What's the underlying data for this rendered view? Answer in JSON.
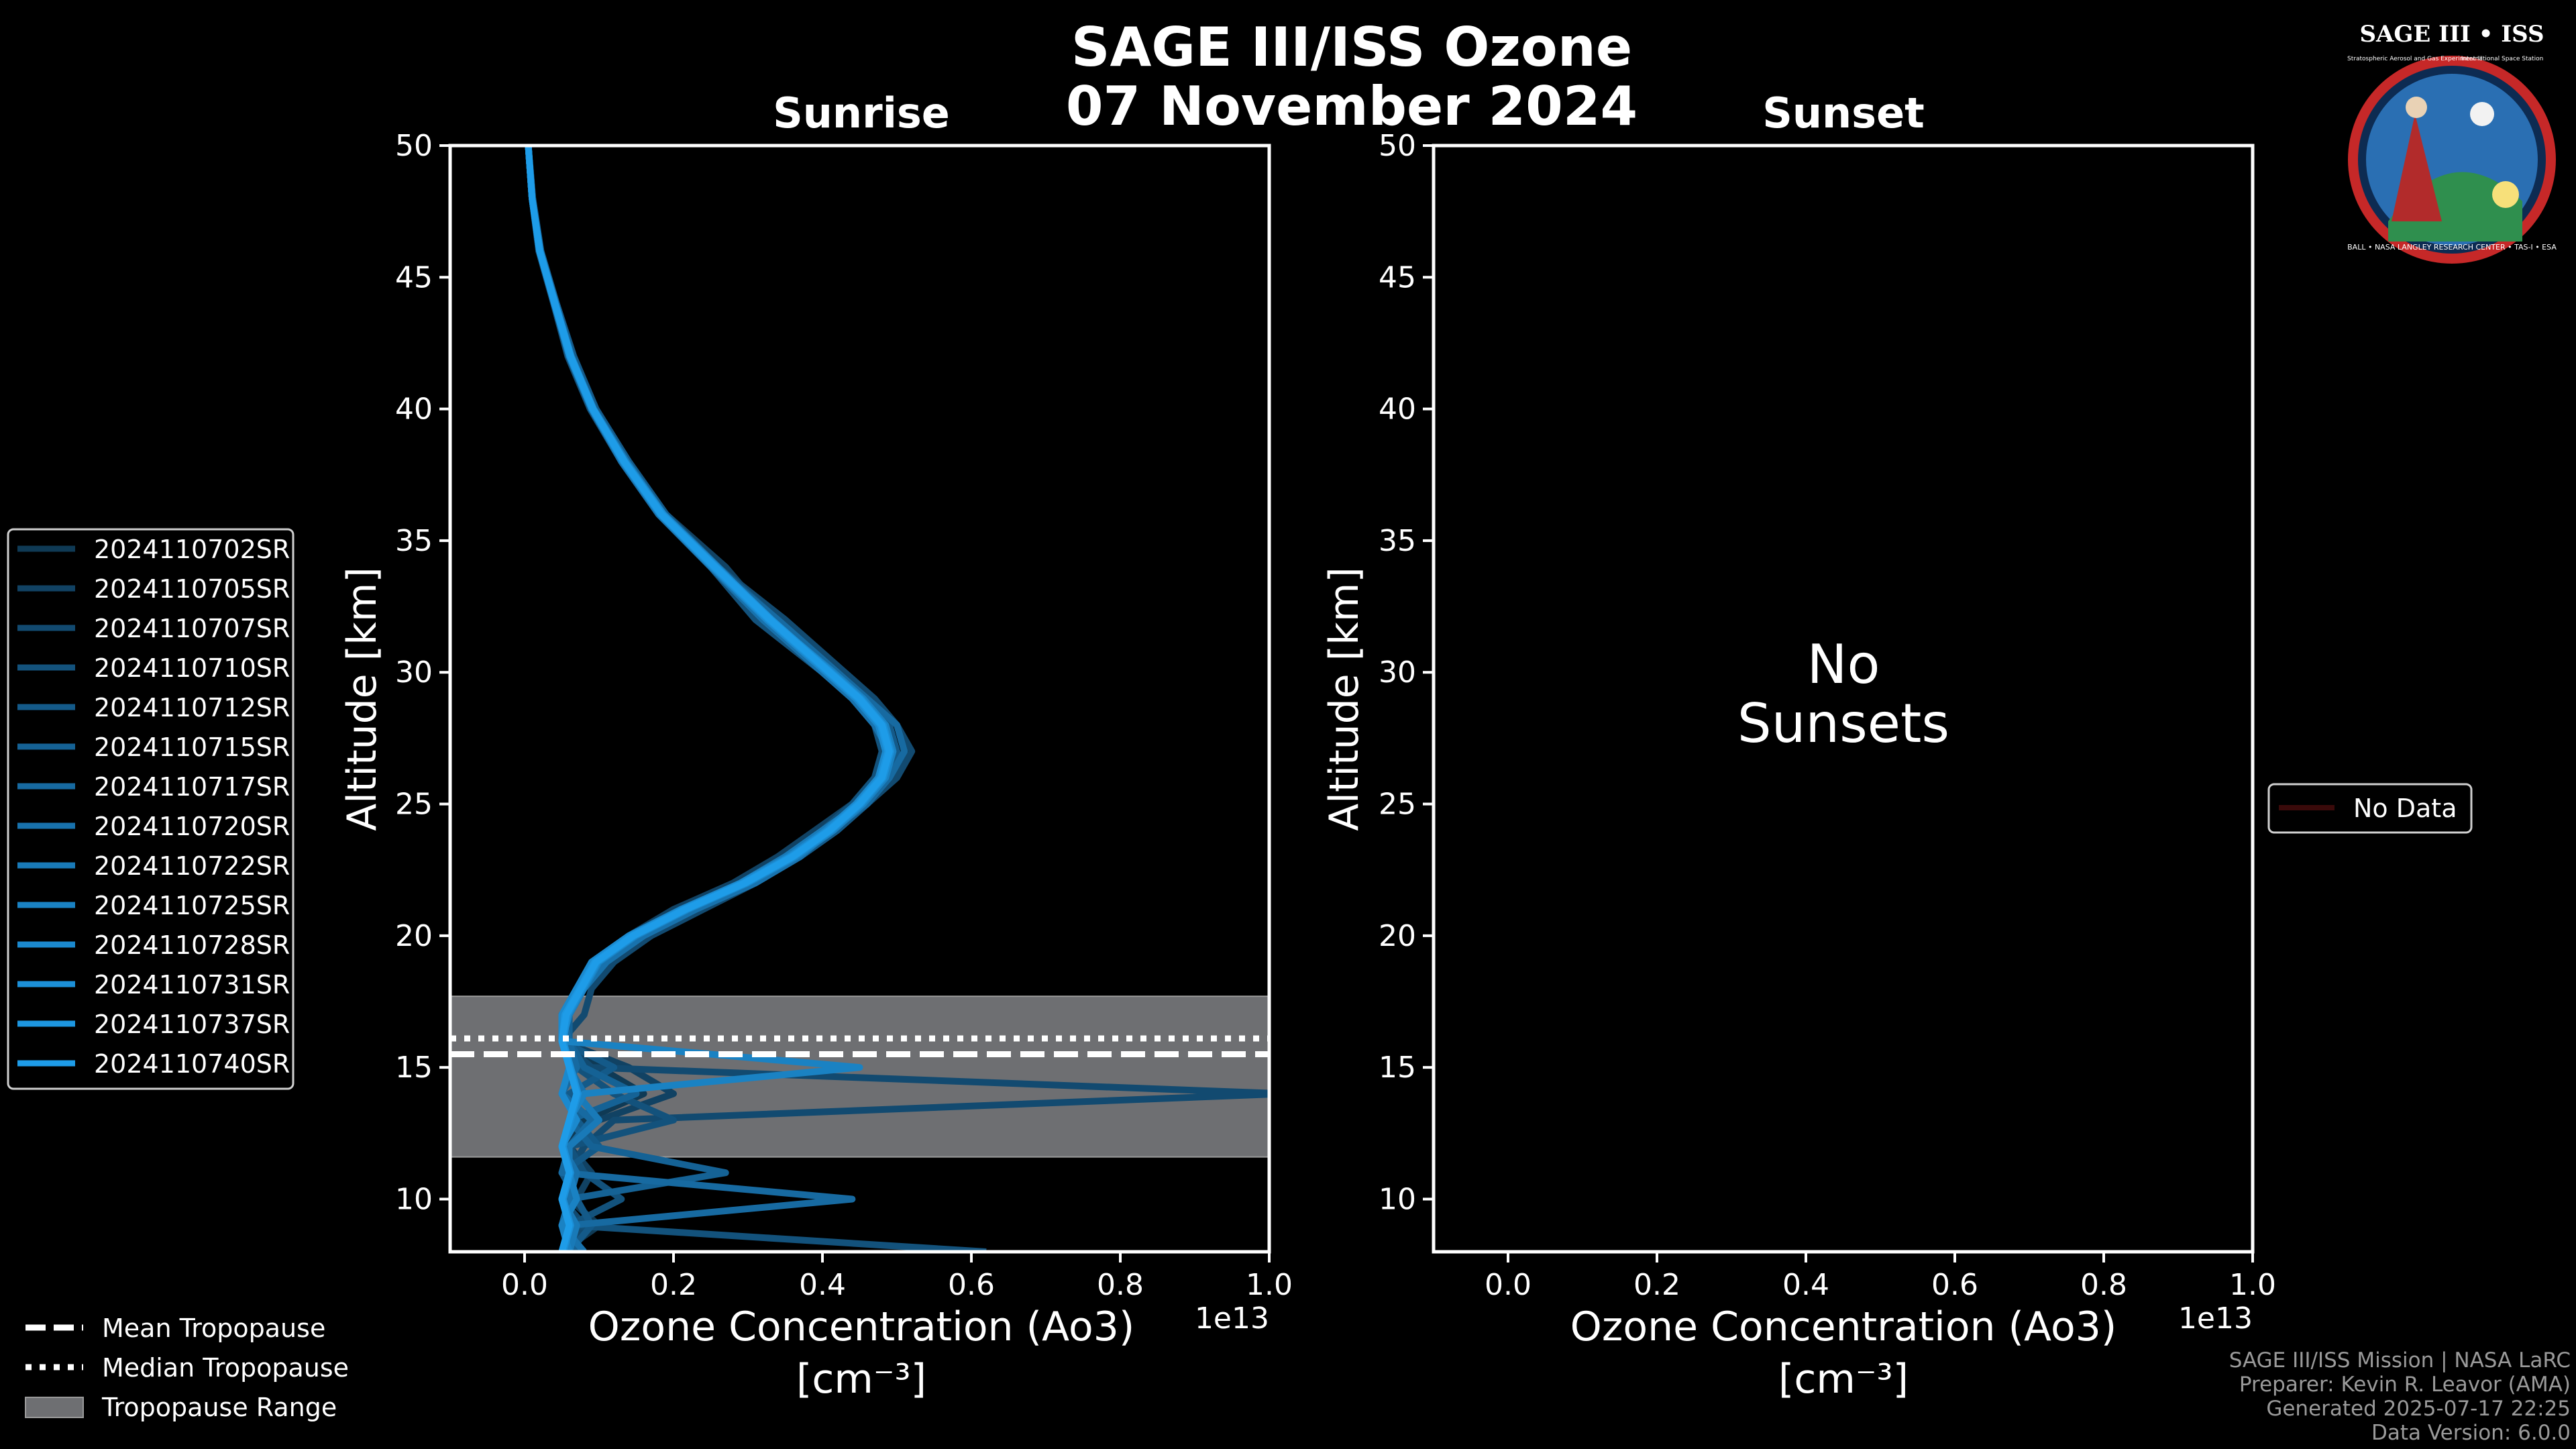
{
  "title_line1": "SAGE III/ISS Ozone",
  "title_line2": "07 November 2024",
  "logo": {
    "text_top": "SAGE III • ISS",
    "text_sub": "Stratospheric Aerosol and Gas Experiment III",
    "text_sub2": "International Space Station",
    "text_ring": "BALL • NASA LANGLEY RESEARCH CENTER • TAS-I • ESA"
  },
  "chart_data": [
    {
      "type": "line",
      "title": "Sunrise",
      "xlabel": "Ozone Concentration (Ao3)",
      "xlabel_units": "[cm⁻³]",
      "ylabel": "Altitude [km]",
      "x_scale_label": "1e13",
      "xlim": [
        -0.1,
        1.0
      ],
      "ylim": [
        8,
        50
      ],
      "xticks": [
        "0.0",
        "0.2",
        "0.4",
        "0.6",
        "0.8",
        "1.0"
      ],
      "yticks": [
        "10",
        "15",
        "20",
        "25",
        "30",
        "35",
        "40",
        "45",
        "50"
      ],
      "profile_altitudes_km": [
        50,
        48,
        46,
        44,
        42,
        40,
        38,
        36,
        34,
        32,
        30,
        29,
        28,
        27,
        26,
        25,
        24,
        23,
        22,
        21,
        20,
        19,
        18,
        17,
        16,
        15,
        14,
        13,
        12,
        11,
        10,
        9,
        8
      ],
      "tropopause": {
        "mean_km": 15.5,
        "median_km": 16.1,
        "range_km": [
          11.6,
          17.7
        ]
      },
      "series": [
        {
          "name": "2024110702SR",
          "color": "#0f3a55",
          "values": [
            0.005,
            0.01,
            0.02,
            0.04,
            0.06,
            0.09,
            0.13,
            0.18,
            0.25,
            0.32,
            0.41,
            0.45,
            0.48,
            0.49,
            0.48,
            0.45,
            0.41,
            0.36,
            0.3,
            0.22,
            0.15,
            0.1,
            0.08,
            0.05,
            0.06,
            0.1,
            0.16,
            0.08,
            0.05,
            0.07,
            0.06,
            0.1,
            0.05
          ]
        },
        {
          "name": "2024110705SR",
          "color": "#114263",
          "values": [
            0.005,
            0.01,
            0.021,
            0.042,
            0.065,
            0.095,
            0.14,
            0.19,
            0.27,
            0.33,
            0.42,
            0.46,
            0.49,
            0.5,
            0.47,
            0.44,
            0.39,
            0.34,
            0.28,
            0.2,
            0.14,
            0.09,
            0.07,
            0.06,
            0.05,
            0.14,
            0.2,
            0.1,
            0.06,
            0.09,
            0.07,
            0.05,
            0.06
          ]
        },
        {
          "name": "2024110707SR",
          "color": "#124a70",
          "values": [
            0.005,
            0.01,
            0.02,
            0.04,
            0.06,
            0.09,
            0.135,
            0.185,
            0.26,
            0.35,
            0.43,
            0.47,
            0.5,
            0.52,
            0.5,
            0.46,
            0.42,
            0.37,
            0.31,
            0.24,
            0.17,
            0.12,
            0.09,
            0.08,
            0.05,
            0.09,
            1.02,
            0.12,
            0.08,
            0.06,
            0.05,
            0.08,
            0.05
          ]
        },
        {
          "name": "2024110710SR",
          "color": "#13527c",
          "values": [
            0.005,
            0.01,
            0.019,
            0.039,
            0.058,
            0.088,
            0.13,
            0.18,
            0.25,
            0.31,
            0.4,
            0.44,
            0.47,
            0.48,
            0.47,
            0.44,
            0.4,
            0.35,
            0.29,
            0.21,
            0.14,
            0.1,
            0.07,
            0.06,
            0.05,
            0.07,
            0.12,
            0.2,
            0.06,
            0.08,
            0.13,
            0.06,
            0.62
          ]
        },
        {
          "name": "2024110712SR",
          "color": "#145a89",
          "values": [
            0.005,
            0.011,
            0.022,
            0.043,
            0.066,
            0.096,
            0.14,
            0.19,
            0.26,
            0.34,
            0.42,
            0.46,
            0.49,
            0.5,
            0.49,
            0.46,
            0.42,
            0.37,
            0.3,
            0.22,
            0.16,
            0.11,
            0.08,
            0.06,
            0.05,
            0.12,
            0.06,
            0.07,
            0.1,
            0.05,
            0.07,
            0.09,
            0.06
          ]
        },
        {
          "name": "2024110715SR",
          "color": "#156295",
          "values": [
            0.005,
            0.01,
            0.02,
            0.041,
            0.062,
            0.092,
            0.135,
            0.185,
            0.255,
            0.33,
            0.41,
            0.455,
            0.48,
            0.49,
            0.48,
            0.45,
            0.41,
            0.36,
            0.3,
            0.23,
            0.16,
            0.1,
            0.08,
            0.06,
            0.06,
            0.08,
            0.15,
            0.06,
            0.09,
            0.27,
            0.06,
            0.05,
            0.07
          ]
        },
        {
          "name": "2024110717SR",
          "color": "#176aa1",
          "values": [
            0.005,
            0.01,
            0.021,
            0.04,
            0.061,
            0.091,
            0.133,
            0.183,
            0.255,
            0.34,
            0.42,
            0.46,
            0.5,
            0.51,
            0.49,
            0.46,
            0.41,
            0.36,
            0.29,
            0.21,
            0.15,
            0.1,
            0.07,
            0.05,
            0.06,
            0.07,
            0.05,
            0.09,
            0.06,
            0.05,
            0.44,
            0.06,
            0.05
          ]
        },
        {
          "name": "2024110720SR",
          "color": "#1872ad",
          "values": [
            0.005,
            0.01,
            0.02,
            0.04,
            0.06,
            0.09,
            0.13,
            0.18,
            0.25,
            0.32,
            0.4,
            0.44,
            0.47,
            0.49,
            0.48,
            0.45,
            0.41,
            0.37,
            0.31,
            0.23,
            0.16,
            0.11,
            0.08,
            0.06,
            0.05,
            0.06,
            0.08,
            0.06,
            0.05,
            0.07,
            0.06,
            0.05,
            0.08
          ]
        },
        {
          "name": "2024110722SR",
          "color": "#197ab8",
          "values": [
            0.005,
            0.01,
            0.021,
            0.042,
            0.063,
            0.093,
            0.137,
            0.187,
            0.26,
            0.33,
            0.41,
            0.45,
            0.48,
            0.49,
            0.48,
            0.45,
            0.4,
            0.35,
            0.29,
            0.22,
            0.15,
            0.1,
            0.08,
            0.06,
            0.05,
            0.06,
            0.07,
            0.1,
            0.06,
            0.06,
            0.05,
            0.07,
            0.06
          ]
        },
        {
          "name": "2024110725SR",
          "color": "#1a82c3",
          "values": [
            0.005,
            0.01,
            0.02,
            0.041,
            0.062,
            0.092,
            0.134,
            0.184,
            0.255,
            0.33,
            0.415,
            0.455,
            0.485,
            0.495,
            0.485,
            0.455,
            0.415,
            0.365,
            0.3,
            0.22,
            0.15,
            0.1,
            0.08,
            0.06,
            0.05,
            0.45,
            0.08,
            0.06,
            0.05,
            0.06,
            0.07,
            0.05,
            0.06
          ]
        },
        {
          "name": "2024110728SR",
          "color": "#1b89ce",
          "values": [
            0.005,
            0.01,
            0.02,
            0.04,
            0.06,
            0.09,
            0.132,
            0.182,
            0.252,
            0.325,
            0.405,
            0.445,
            0.475,
            0.485,
            0.475,
            0.445,
            0.405,
            0.355,
            0.29,
            0.21,
            0.14,
            0.09,
            0.07,
            0.05,
            0.05,
            0.06,
            0.05,
            0.07,
            0.05,
            0.06,
            0.05,
            0.06,
            0.05
          ]
        },
        {
          "name": "2024110731SR",
          "color": "#1c90d8",
          "values": [
            0.005,
            0.01,
            0.021,
            0.041,
            0.062,
            0.092,
            0.135,
            0.186,
            0.258,
            0.332,
            0.412,
            0.452,
            0.482,
            0.492,
            0.482,
            0.452,
            0.412,
            0.362,
            0.298,
            0.218,
            0.148,
            0.098,
            0.078,
            0.058,
            0.052,
            0.062,
            0.072,
            0.062,
            0.052,
            0.062,
            0.052,
            0.062,
            0.052
          ]
        },
        {
          "name": "2024110737SR",
          "color": "#1d96e0",
          "values": [
            0.005,
            0.01,
            0.02,
            0.04,
            0.061,
            0.091,
            0.133,
            0.183,
            0.254,
            0.328,
            0.408,
            0.448,
            0.478,
            0.488,
            0.478,
            0.448,
            0.408,
            0.358,
            0.294,
            0.214,
            0.144,
            0.094,
            0.074,
            0.054,
            0.05,
            0.06,
            0.07,
            0.06,
            0.05,
            0.06,
            0.05,
            0.06,
            0.05
          ]
        },
        {
          "name": "2024110740SR",
          "color": "#1e9ce8",
          "values": [
            0.005,
            0.01,
            0.02,
            0.041,
            0.062,
            0.092,
            0.134,
            0.184,
            0.256,
            0.33,
            0.41,
            0.45,
            0.48,
            0.49,
            0.48,
            0.45,
            0.41,
            0.36,
            0.296,
            0.216,
            0.146,
            0.096,
            0.076,
            0.056,
            0.05,
            0.06,
            0.07,
            0.06,
            0.05,
            0.06,
            0.05,
            0.06,
            0.05
          ]
        }
      ]
    },
    {
      "type": "line",
      "title": "Sunset",
      "xlabel": "Ozone Concentration (Ao3)",
      "xlabel_units": "[cm⁻³]",
      "ylabel": "Altitude [km]",
      "x_scale_label": "1e13",
      "xlim": [
        -0.1,
        1.0
      ],
      "ylim": [
        8,
        50
      ],
      "xticks": [
        "0.0",
        "0.2",
        "0.4",
        "0.6",
        "0.8",
        "1.0"
      ],
      "yticks": [
        "10",
        "15",
        "20",
        "25",
        "30",
        "35",
        "40",
        "45",
        "50"
      ],
      "annotation_line1": "No",
      "annotation_line2": "Sunsets",
      "legend_label": "No Data",
      "series": []
    }
  ],
  "legend_tropopause": {
    "mean": "Mean Tropopause",
    "median": "Median Tropopause",
    "range": "Tropopause Range"
  },
  "credits": {
    "line1": "SAGE III/ISS Mission | NASA LaRC",
    "line2": "Preparer: Kevin R. Leavor (AMA)",
    "line3": "Generated 2025-07-17 22:25",
    "line4": "Data Version: 6.0.0"
  }
}
